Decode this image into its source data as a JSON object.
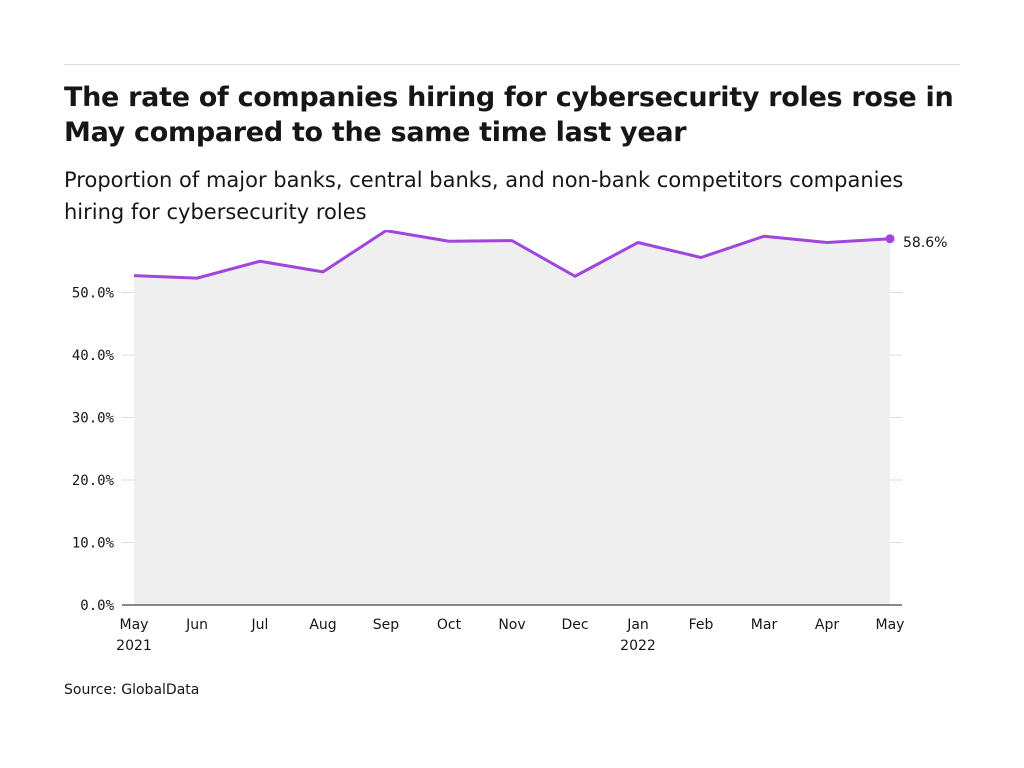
{
  "header": {
    "title": "The rate of companies hiring for cybersecurity roles rose in May compared to the same time last year",
    "subtitle": "Proportion of major banks, central banks, and non-bank competitors companies hiring for cybersecurity roles"
  },
  "footer": {
    "source": "Source: GlobalData"
  },
  "chart_data": {
    "type": "area",
    "title": "The rate of companies hiring for cybersecurity roles rose in May compared to the same time last year",
    "subtitle": "Proportion of major banks, central banks, and non-bank competitors companies hiring for cybersecurity roles",
    "xlabel": "",
    "ylabel": "",
    "categories": [
      "May 2021",
      "Jun 2021",
      "Jul 2021",
      "Aug 2021",
      "Sep 2021",
      "Oct 2021",
      "Nov 2021",
      "Dec 2021",
      "Jan 2022",
      "Feb 2022",
      "Mar 2022",
      "Apr 2022",
      "May 2022"
    ],
    "x_tick_labels": [
      {
        "month": "May",
        "year": "2021"
      },
      {
        "month": "Jun",
        "year": ""
      },
      {
        "month": "Jul",
        "year": ""
      },
      {
        "month": "Aug",
        "year": ""
      },
      {
        "month": "Sep",
        "year": ""
      },
      {
        "month": "Oct",
        "year": ""
      },
      {
        "month": "Nov",
        "year": ""
      },
      {
        "month": "Dec",
        "year": ""
      },
      {
        "month": "Jan",
        "year": "2022"
      },
      {
        "month": "Feb",
        "year": ""
      },
      {
        "month": "Mar",
        "year": ""
      },
      {
        "month": "Apr",
        "year": ""
      },
      {
        "month": "May",
        "year": ""
      }
    ],
    "series": [
      {
        "values": [
          52.7,
          52.3,
          55.0,
          53.3,
          59.9,
          58.2,
          58.3,
          52.6,
          58.0,
          55.6,
          59.0,
          58.0,
          58.6
        ]
      }
    ],
    "end_label": "58.6%",
    "yticks": [
      0,
      10,
      20,
      30,
      40,
      50
    ],
    "ytick_labels": [
      "0.0%",
      "10.0%",
      "20.0%",
      "30.0%",
      "40.0%",
      "50.0%"
    ],
    "ylim": [
      0,
      60
    ],
    "grid": true,
    "legend": "none",
    "colors": {
      "line": "#a045e0",
      "area": "#efefef",
      "grid": "#dcdcdc",
      "axis": "#161616"
    }
  }
}
